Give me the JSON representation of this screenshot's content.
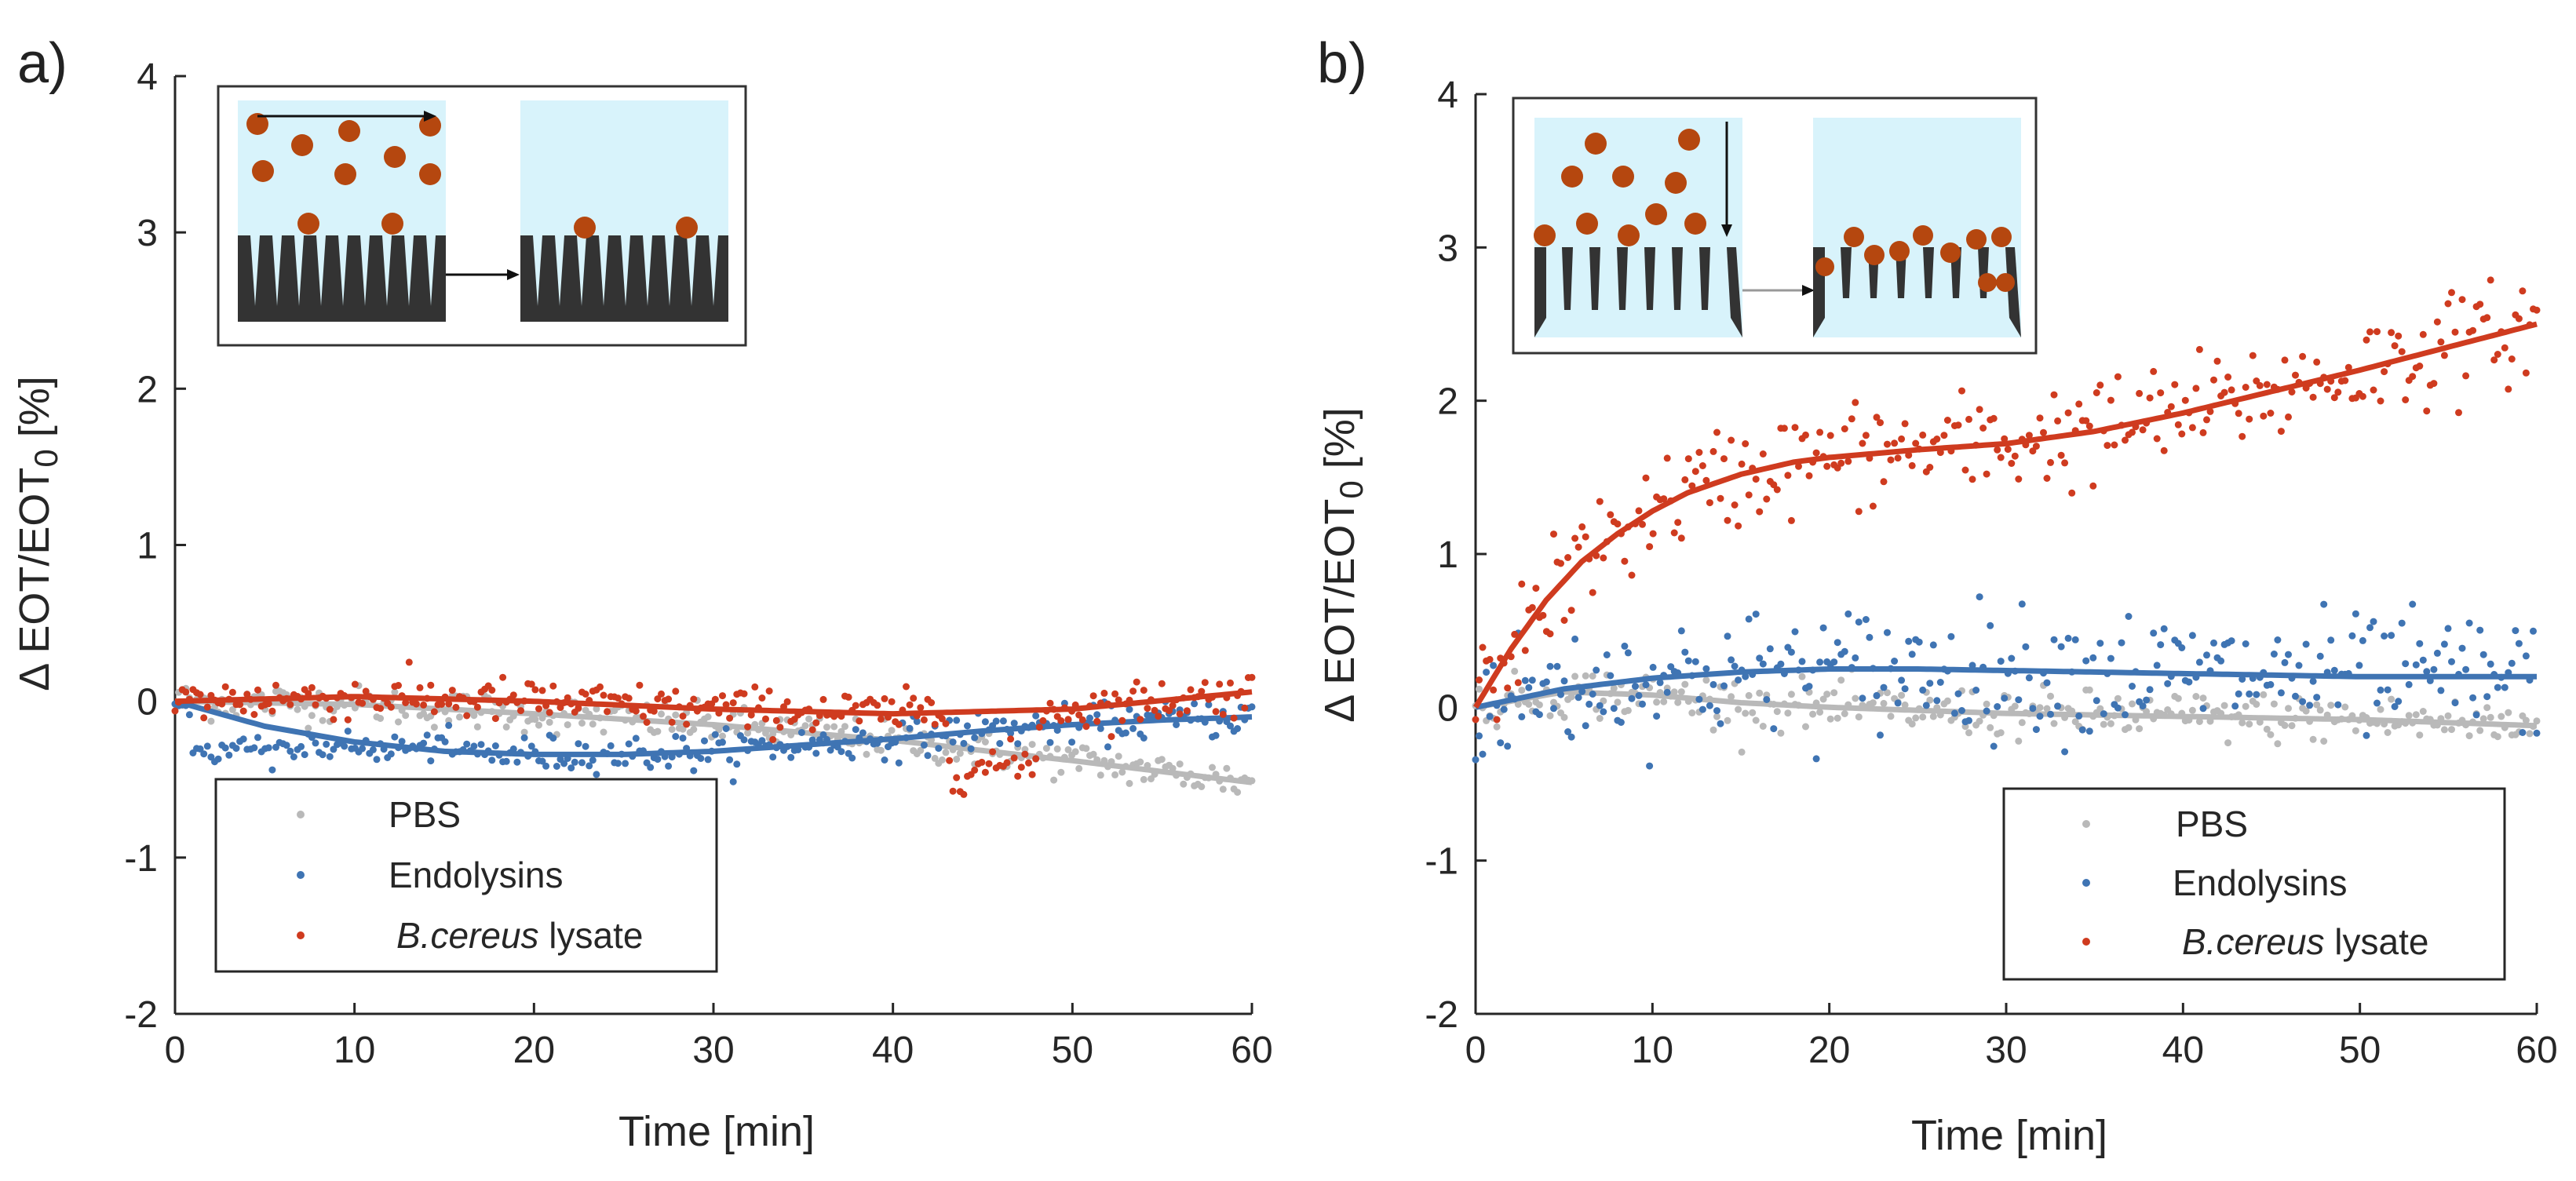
{
  "figure": {
    "panels": [
      "a)",
      "b)"
    ]
  },
  "colors": {
    "pbs": "#b9b9b9",
    "endolysins": "#3f74b3",
    "lysate": "#cf3b1f",
    "liquid": "#d8f3fb",
    "particle": "#b5470f",
    "substrate": "#333333"
  },
  "chart_data": [
    {
      "type": "scatter",
      "panel_label": "a)",
      "xlabel": "Time [min]",
      "ylabel": "Δ EOT/EOT",
      "ylabel_subscript": "0",
      "ylabel_unit": " [%]",
      "xlim": [
        0,
        60
      ],
      "ylim": [
        -2,
        4
      ],
      "xticks": [
        0,
        10,
        20,
        30,
        40,
        50,
        60
      ],
      "yticks": [
        -2,
        -1,
        0,
        1,
        2,
        3,
        4
      ],
      "legend_position": "bottom-left",
      "inset": "planar porous silicon with particles above the pore openings",
      "series": [
        {
          "name": "PBS",
          "name_italic": "",
          "name_plain": "PBS",
          "fit_x": [
            0,
            10,
            20,
            30,
            40,
            50,
            60
          ],
          "fit_y": [
            0,
            -0.02,
            -0.08,
            -0.15,
            -0.25,
            -0.38,
            -0.52
          ]
        },
        {
          "name": "Endolysins",
          "name_italic": "",
          "name_plain": "Endolysins",
          "fit_x": [
            0,
            5,
            10,
            15,
            20,
            25,
            30,
            35,
            40,
            45,
            50,
            55,
            60
          ],
          "fit_y": [
            0,
            -0.16,
            -0.26,
            -0.32,
            -0.34,
            -0.34,
            -0.32,
            -0.28,
            -0.24,
            -0.19,
            -0.15,
            -0.12,
            -0.1
          ]
        },
        {
          "name": "B.cereus lysate",
          "name_italic": "B.cereus",
          "name_plain": " lysate",
          "fit_x": [
            0,
            10,
            20,
            30,
            40,
            50,
            60
          ],
          "fit_y": [
            0,
            0.03,
            0.0,
            -0.05,
            -0.08,
            -0.05,
            0.06
          ]
        }
      ]
    },
    {
      "type": "scatter",
      "panel_label": "b)",
      "xlabel": "Time [min]",
      "ylabel": "Δ EOT/EOT",
      "ylabel_subscript": "0",
      "ylabel_unit": " [%]",
      "xlim": [
        0,
        60
      ],
      "ylim": [
        -2,
        4
      ],
      "xticks": [
        0,
        10,
        20,
        30,
        40,
        50,
        60
      ],
      "yticks": [
        -2,
        -1,
        0,
        1,
        2,
        3,
        4
      ],
      "legend_position": "bottom-right",
      "inset": "porous silicon membrane with flow-through of particles",
      "series": [
        {
          "name": "PBS",
          "name_italic": "",
          "name_plain": "PBS",
          "fit_x": [
            0,
            5,
            10,
            15,
            20,
            30,
            40,
            50,
            60
          ],
          "fit_y": [
            0,
            0.1,
            0.08,
            0.03,
            0.0,
            -0.04,
            -0.06,
            -0.08,
            -0.12
          ]
        },
        {
          "name": "Endolysins",
          "name_italic": "",
          "name_plain": "Endolysins",
          "fit_x": [
            0,
            5,
            10,
            15,
            20,
            25,
            30,
            40,
            50,
            60
          ],
          "fit_y": [
            0,
            0.12,
            0.19,
            0.23,
            0.25,
            0.25,
            0.24,
            0.22,
            0.2,
            0.2
          ]
        },
        {
          "name": "B.cereus lysate",
          "name_italic": "B.cereus",
          "name_plain": " lysate",
          "fit_x": [
            0,
            2,
            4,
            6,
            8,
            10,
            12,
            15,
            18,
            20,
            25,
            30,
            35,
            40,
            45,
            50,
            55,
            60
          ],
          "fit_y": [
            0,
            0.38,
            0.7,
            0.95,
            1.13,
            1.28,
            1.4,
            1.52,
            1.6,
            1.63,
            1.68,
            1.72,
            1.8,
            1.92,
            2.06,
            2.2,
            2.35,
            2.5
          ]
        }
      ]
    }
  ]
}
